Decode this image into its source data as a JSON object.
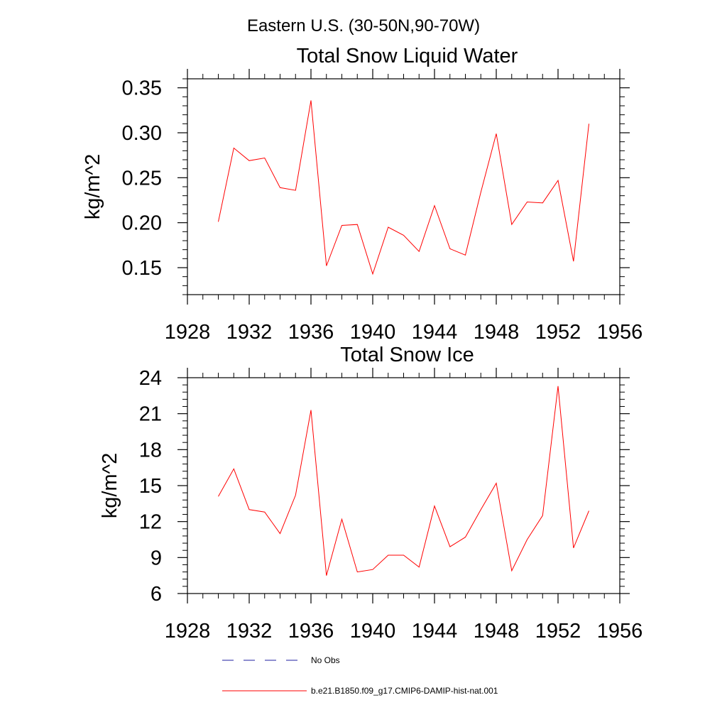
{
  "suptitle": "Eastern U.S. (30-50N,90-70W)",
  "series_colors": {
    "model": "#ff0000",
    "obs": "#1f1fa0"
  },
  "legend": {
    "entries": [
      {
        "label": "No Obs",
        "style": "dashed",
        "color": "#1f1fa0"
      },
      {
        "label": "b.e21.B1850.f09_g17.CMIP6-DAMIP-hist-nat.001",
        "style": "solid",
        "color": "#ff0000"
      }
    ]
  },
  "chart_data": [
    {
      "type": "line",
      "title": "Total Snow Liquid Water",
      "xlabel": "",
      "ylabel": "kg/m^2",
      "xlim": [
        1928,
        1956
      ],
      "ylim": [
        0.12,
        0.36
      ],
      "xticks": [
        1928,
        1932,
        1936,
        1940,
        1944,
        1948,
        1952,
        1956
      ],
      "xtick_labels": [
        "1928",
        "1932",
        "1936",
        "1940",
        "1944",
        "1948",
        "1952",
        "1956"
      ],
      "yticks": [
        0.15,
        0.2,
        0.25,
        0.3,
        0.35
      ],
      "ytick_labels": [
        "0.15",
        "0.20",
        "0.25",
        "0.30",
        "0.35"
      ],
      "x_minor_step": 1,
      "y_minor_step": 0.01,
      "x": [
        1930,
        1931,
        1932,
        1933,
        1934,
        1935,
        1936,
        1937,
        1938,
        1939,
        1940,
        1941,
        1942,
        1943,
        1944,
        1945,
        1946,
        1947,
        1948,
        1949,
        1950,
        1951,
        1952,
        1953,
        1954
      ],
      "series": [
        {
          "values": [
            0.201,
            0.283,
            0.269,
            0.272,
            0.239,
            0.236,
            0.336,
            0.152,
            0.197,
            0.198,
            0.143,
            0.195,
            0.186,
            0.168,
            0.219,
            0.171,
            0.164,
            0.234,
            0.299,
            0.198,
            0.223,
            0.222,
            0.247,
            0.157,
            0.31
          ]
        }
      ]
    },
    {
      "type": "line",
      "title": "Total Snow Ice",
      "xlabel": "",
      "ylabel": "kg/m^2",
      "xlim": [
        1928,
        1956
      ],
      "ylim": [
        6,
        24
      ],
      "xticks": [
        1928,
        1932,
        1936,
        1940,
        1944,
        1948,
        1952,
        1956
      ],
      "xtick_labels": [
        "1928",
        "1932",
        "1936",
        "1940",
        "1944",
        "1948",
        "1952",
        "1956"
      ],
      "yticks": [
        6,
        9,
        12,
        15,
        18,
        21,
        24
      ],
      "ytick_labels": [
        "6",
        "9",
        "12",
        "15",
        "18",
        "21",
        "24"
      ],
      "x_minor_step": 1,
      "y_minor_step": 0.6,
      "x": [
        1930,
        1931,
        1932,
        1933,
        1934,
        1935,
        1936,
        1937,
        1938,
        1939,
        1940,
        1941,
        1942,
        1943,
        1944,
        1945,
        1946,
        1947,
        1948,
        1949,
        1950,
        1951,
        1952,
        1953,
        1954
      ],
      "series": [
        {
          "values": [
            14.1,
            16.4,
            13.0,
            12.8,
            11.0,
            14.2,
            21.3,
            7.5,
            12.2,
            7.8,
            8.0,
            9.2,
            9.2,
            8.2,
            13.3,
            9.9,
            10.7,
            13.0,
            15.2,
            7.9,
            10.5,
            12.5,
            23.3,
            9.8,
            12.9
          ]
        }
      ]
    }
  ]
}
